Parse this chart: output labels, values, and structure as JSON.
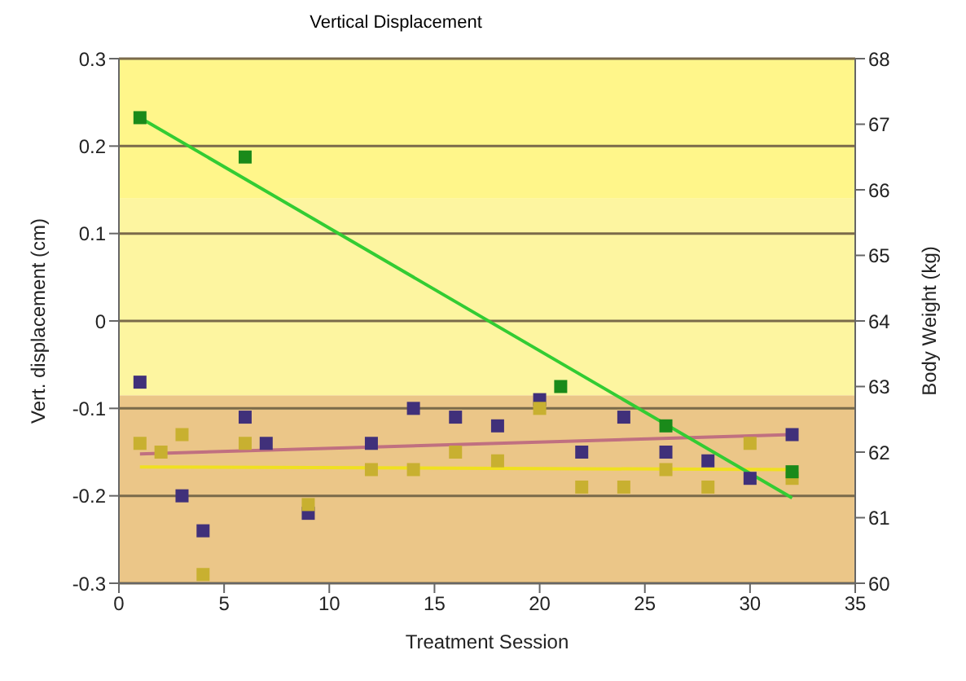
{
  "chart_data": {
    "type": "scatter",
    "title": "Vertical Displacement",
    "xlabel": "Treatment Session",
    "ylabel": "Vert. displacement (cm)",
    "y2label": "Body Weight (kg)",
    "xlim": [
      0,
      35
    ],
    "xticks": [
      0,
      5,
      10,
      15,
      20,
      25,
      30,
      35
    ],
    "ylim": [
      -0.3,
      0.3
    ],
    "yticks": [
      -0.3,
      -0.2,
      -0.1,
      0,
      0.1,
      0.2,
      0.3
    ],
    "y2lim": [
      60,
      68
    ],
    "y2ticks": [
      60,
      61,
      62,
      63,
      64,
      65,
      66,
      67,
      68
    ],
    "grid": "y",
    "bands": [
      {
        "axis": "y",
        "from": -0.3,
        "to": -0.085,
        "color": "#ebc688"
      },
      {
        "axis": "y",
        "from": -0.085,
        "to": 0.14,
        "color": "#fdf5a0"
      },
      {
        "axis": "y",
        "from": 0.14,
        "to": 0.3,
        "color": "#fff68a"
      }
    ],
    "series": [
      {
        "marker": "square",
        "color": "#40307a",
        "x": [
          1,
          3,
          4,
          6,
          7,
          9,
          12,
          14,
          16,
          18,
          20,
          22,
          24,
          26,
          28,
          30,
          32
        ],
        "values": [
          -0.07,
          -0.2,
          -0.24,
          -0.11,
          -0.14,
          -0.22,
          -0.14,
          -0.1,
          -0.11,
          -0.12,
          -0.09,
          -0.15,
          -0.11,
          -0.15,
          -0.16,
          -0.18,
          -0.13
        ]
      },
      {
        "marker": "square",
        "color": "#c8b030",
        "x": [
          1,
          2,
          3,
          4,
          6,
          9,
          12,
          14,
          16,
          18,
          20,
          22,
          24,
          26,
          28,
          30,
          32
        ],
        "values": [
          -0.14,
          -0.15,
          -0.13,
          -0.29,
          -0.14,
          -0.21,
          -0.17,
          -0.17,
          -0.15,
          -0.16,
          -0.1,
          -0.19,
          -0.19,
          -0.17,
          -0.19,
          -0.14,
          -0.18
        ]
      },
      {
        "marker": "square",
        "color": "#1a8a1a",
        "axis": "y2",
        "x": [
          1,
          6,
          21,
          26,
          32
        ],
        "values": [
          67.1,
          66.5,
          63.0,
          62.4,
          61.7
        ]
      },
      {
        "type": "line",
        "color": "#c07080",
        "x": [
          1,
          32
        ],
        "values": [
          -0.152,
          -0.13
        ]
      },
      {
        "type": "line",
        "color": "#f0e020",
        "x": [
          1,
          32
        ],
        "values": [
          -0.167,
          -0.17
        ]
      },
      {
        "type": "line",
        "color": "#33cc33",
        "axis": "y2",
        "x": [
          1,
          32
        ],
        "values": [
          67.1,
          61.3
        ]
      }
    ]
  }
}
